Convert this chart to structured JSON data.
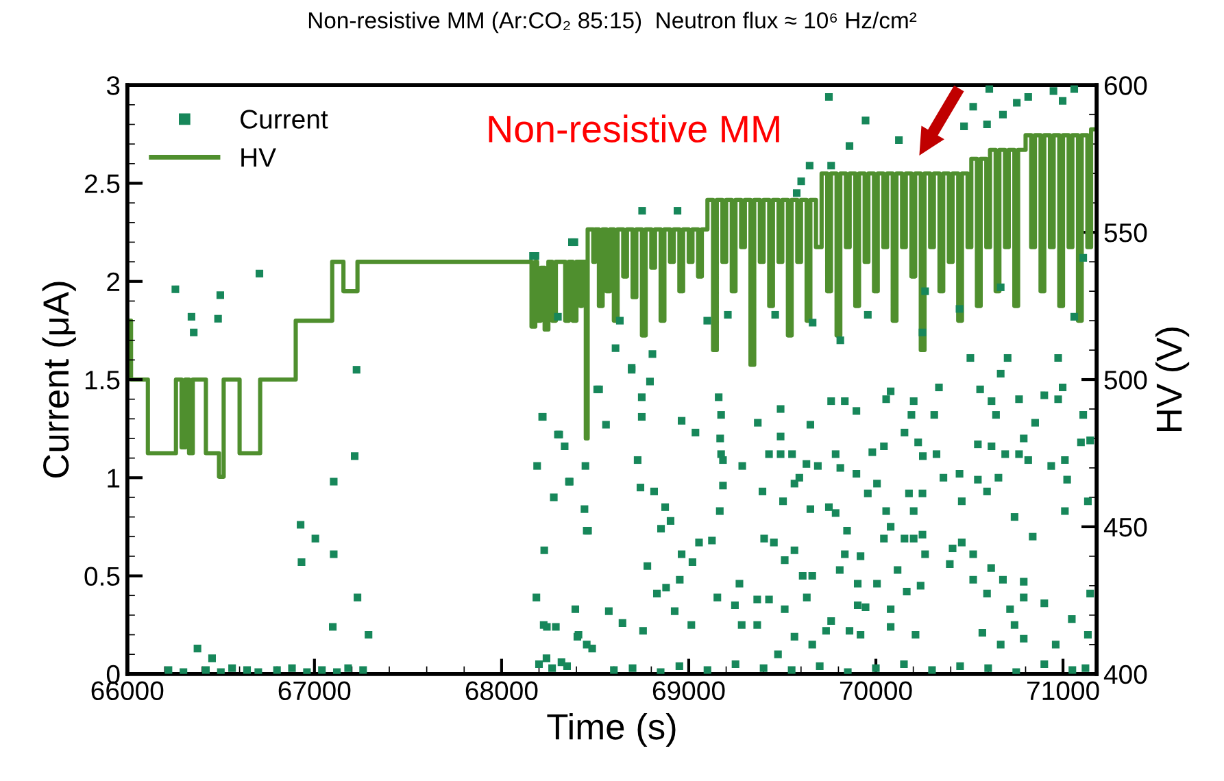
{
  "chart_data": {
    "type": "scatter",
    "title": "Non-resistive MM (Ar:CO₂ 85:15)  Neutron flux ≈ 10⁶ Hz/cm²",
    "xlabel": "Time (s)",
    "ylabel": "Current (μA)",
    "y2label": "HV (V)",
    "annotations": [
      "Non-resistive MM"
    ],
    "xlim": [
      66000,
      71180
    ],
    "xticks": [
      66000,
      67000,
      68000,
      69000,
      70000,
      71000
    ],
    "ylim": [
      0,
      3
    ],
    "yticks": [
      0,
      {
        "value": 0.5,
        "label": "0.5"
      },
      1,
      {
        "value": 1.5,
        "label": "1.5"
      },
      2,
      {
        "value": 2.5,
        "label": "2.5"
      },
      3
    ],
    "y2lim": [
      400,
      600
    ],
    "y2ticks": [
      400,
      450,
      500,
      550,
      600
    ],
    "legend": "top left",
    "grid": false,
    "marker": "square",
    "series": [
      {
        "name": "Current",
        "color": "#17875a",
        "x": [
          66257,
          66343,
          66355,
          66497,
          66485,
          66706,
          67225,
          67215,
          67103,
          66926,
          67005,
          66931,
          67103,
          67230,
          67098,
          67289,
          66375,
          66453,
          66220,
          66300,
          66420,
          66500,
          66560,
          66640,
          66700,
          66800,
          66880,
          66960,
          67040,
          67120,
          67180,
          67260,
          68376,
          68168,
          68301,
          68511,
          68220,
          68301,
          68337,
          68190,
          68448,
          68360,
          68279,
          68443,
          68455,
          68228,
          68186,
          68394,
          68225,
          68290,
          68405,
          68455,
          68200,
          68240,
          68270,
          68320,
          68350,
          68217,
          68308,
          68364,
          68462,
          68521,
          68558,
          68695,
          68793,
          68749,
          68749,
          68727,
          68742,
          68815,
          68874,
          68903,
          68852,
          68962,
          69036,
          69160,
          69173,
          69168,
          69173,
          69183,
          69286,
          69183,
          69166,
          69124,
          69055,
          68962,
          69020,
          68952,
          68879,
          68830,
          68779,
          68925,
          69014,
          68756,
          68646,
          68573,
          68242,
          68411,
          68484,
          69153,
          69247,
          69271,
          69283,
          69366,
          69366,
          69429,
          69513,
          69631,
          69565,
          69660,
          69477,
          69403,
          69455,
          69513,
          69565,
          69609,
          69660,
          69807,
          69903,
          70006,
          69918,
          69834,
          69903,
          69945,
          69859,
          69918,
          69761,
          69734,
          70079,
          70079,
          70116,
          70165,
          70239,
          70212,
          70202,
          70249,
          70263,
          70153,
          70043,
          70079,
          70410,
          70459,
          70520,
          70395,
          70616,
          70679,
          70520,
          70594,
          70790,
          70790,
          70900,
          70717,
          70741,
          70569,
          70667,
          70790,
          70961,
          71047,
          71145,
          71133,
          70814,
          70937,
          71010,
          71022,
          71133,
          71145,
          71096,
          71010,
          70741,
          70838,
          70545,
          70594,
          70655,
          70691,
          70765,
          70447,
          70361,
          70459,
          70545,
          70618,
          70642,
          70790,
          70851,
          70900,
          70974,
          70998,
          71108,
          70557,
          70618,
          70765,
          70667,
          70337,
          70312,
          70202,
          70190,
          70153,
          70226,
          70251,
          70324,
          70177,
          70249,
          70202,
          70055,
          70006,
          69957,
          69896,
          69810,
          69785,
          69690,
          69629,
          69591,
          69565,
          69749,
          69785,
          69846,
          69650,
          69429,
          69491,
          69552,
          69369,
          69491,
          69491,
          69394,
          69504,
          69650,
          69761,
          69834,
          69896,
          70055,
          70079,
          69981,
          70043,
          69749,
          69945,
          69859,
          70123,
          70520,
          70471,
          70594,
          70679,
          70753,
          70814,
          70949,
          71060,
          70998,
          70606,
          69646,
          69761,
          69601,
          69577,
          68751,
          68940,
          68389,
          68181,
          68609,
          68695,
          68806,
          68632,
          69209,
          69099,
          69462,
          69662,
          69810,
          69957,
          70249,
          70447,
          70704,
          71060,
          70974,
          70505,
          70263,
          70667,
          71108,
          68600,
          68700,
          68850,
          68950,
          69100,
          69250,
          69400,
          69550,
          69700,
          69850,
          70000,
          70150,
          70300,
          70450,
          70600,
          70750,
          70900,
          71050,
          71120
        ],
        "values": [
          1.96,
          1.82,
          1.74,
          1.93,
          1.81,
          2.04,
          1.55,
          1.11,
          0.98,
          0.76,
          0.69,
          0.57,
          0.61,
          0.39,
          0.24,
          0.2,
          0.13,
          0.08,
          0.02,
          0.01,
          0.02,
          0.01,
          0.03,
          0.02,
          0.01,
          0.02,
          0.03,
          0.01,
          0.02,
          0.01,
          0.03,
          0.02,
          2.2,
          2.13,
          1.82,
          1.45,
          1.31,
          1.22,
          1.16,
          1.06,
          1.06,
          0.98,
          0.9,
          0.84,
          0.73,
          0.63,
          0.39,
          0.33,
          0.25,
          0.24,
          0.19,
          0.15,
          0.05,
          0.08,
          0.03,
          0.06,
          0.04,
          1.31,
          1.22,
          0.98,
          0.73,
          1.45,
          1.27,
          1.56,
          1.49,
          1.41,
          1.31,
          1.09,
          0.95,
          0.93,
          0.85,
          0.78,
          0.74,
          1.29,
          1.23,
          1.41,
          1.32,
          1.2,
          1.12,
          1.09,
          1.06,
          0.96,
          0.83,
          0.68,
          0.67,
          0.61,
          0.57,
          0.48,
          0.44,
          0.41,
          0.55,
          0.32,
          0.25,
          0.22,
          0.26,
          0.32,
          0.24,
          0.2,
          0.13,
          0.39,
          0.35,
          0.46,
          0.25,
          0.25,
          0.38,
          0.38,
          0.33,
          0.39,
          0.19,
          0.15,
          0.1,
          0.69,
          0.67,
          0.58,
          0.63,
          0.5,
          0.5,
          0.53,
          0.46,
          0.46,
          0.6,
          0.61,
          0.35,
          0.34,
          0.22,
          0.2,
          0.27,
          0.22,
          0.33,
          0.24,
          0.53,
          0.42,
          0.45,
          0.2,
          0.69,
          0.71,
          0.61,
          0.69,
          0.69,
          0.75,
          0.64,
          0.67,
          0.61,
          0.56,
          0.54,
          0.48,
          0.48,
          0.41,
          0.47,
          0.39,
          0.36,
          0.33,
          0.25,
          0.21,
          0.15,
          0.18,
          0.15,
          0.28,
          0.41,
          0.2,
          1.09,
          1.06,
          1.09,
          0.99,
          0.88,
          1.19,
          1.18,
          0.83,
          0.8,
          0.7,
          0.99,
          0.93,
          1.0,
          1.12,
          1.12,
          1.02,
          1.0,
          0.88,
          1.17,
          1.16,
          1.32,
          1.2,
          1.28,
          1.42,
          1.4,
          1.46,
          1.32,
          1.45,
          1.39,
          1.4,
          1.53,
          1.46,
          1.32,
          1.39,
          1.32,
          1.23,
          1.18,
          1.11,
          1.12,
          0.92,
          0.92,
          0.83,
          0.83,
          0.97,
          0.92,
          1.02,
          1.05,
          1.12,
          1.06,
          1.07,
          1.0,
          0.97,
          0.85,
          0.82,
          0.73,
          0.84,
          1.12,
          1.12,
          1.12,
          1.28,
          1.21,
          1.35,
          0.93,
          0.88,
          1.27,
          1.39,
          1.39,
          1.34,
          1.4,
          1.44,
          1.13,
          1.16,
          2.94,
          2.82,
          2.69,
          2.72,
          2.89,
          2.79,
          2.8,
          2.85,
          2.91,
          2.94,
          2.97,
          2.98,
          2.92,
          2.98,
          2.59,
          2.59,
          2.51,
          2.45,
          2.36,
          2.36,
          2.2,
          2.13,
          1.66,
          1.55,
          1.63,
          1.8,
          1.83,
          1.8,
          1.83,
          1.79,
          1.7,
          1.83,
          1.74,
          1.86,
          1.61,
          1.82,
          1.61,
          1.61,
          1.95,
          1.97,
          2.12,
          0.02,
          0.03,
          0.01,
          0.04,
          0.02,
          0.05,
          0.03,
          0.02,
          0.04,
          0.01,
          0.03,
          0.05,
          0.02,
          0.04,
          0.03,
          0.01,
          0.05,
          0.02,
          0.03
        ]
      },
      {
        "name": "HV",
        "type": "step",
        "axis": "y2",
        "color": "#4f8f2e",
        "marker": "none",
        "x": [
          66000,
          66020,
          66110,
          66260,
          66290,
          66310,
          66330,
          66350,
          66420,
          66490,
          66515,
          66600,
          66710,
          66900,
          67095,
          67155,
          67230,
          68150,
          68160,
          68180,
          68190,
          68210,
          68230,
          68250,
          68270,
          68290,
          68340,
          68360,
          68380,
          68400,
          68420,
          68430,
          68450,
          68460,
          68490,
          68500,
          68520,
          68540,
          68560,
          68580,
          68600,
          68620,
          68650,
          68670,
          68700,
          68720,
          68750,
          68770,
          68800,
          68820,
          68850,
          68870,
          68900,
          68920,
          68950,
          68970,
          69000,
          69020,
          69050,
          69070,
          69100,
          69130,
          69150,
          69180,
          69200,
          69230,
          69250,
          69280,
          69300,
          69330,
          69350,
          69380,
          69400,
          69430,
          69450,
          69480,
          69500,
          69530,
          69550,
          69580,
          69600,
          69630,
          69650,
          69680,
          69710,
          69740,
          69760,
          69790,
          69810,
          69840,
          69860,
          69890,
          69910,
          69940,
          69960,
          69990,
          70010,
          70040,
          70060,
          70090,
          70110,
          70140,
          70160,
          70190,
          70210,
          70240,
          70260,
          70290,
          70310,
          70340,
          70360,
          70390,
          70410,
          70440,
          70460,
          70490,
          70510,
          70540,
          70560,
          70590,
          70610,
          70640,
          70660,
          70690,
          70710,
          70740,
          70760,
          70800,
          70830,
          70850,
          70880,
          70900,
          70930,
          70950,
          70980,
          71000,
          71030,
          71050,
          71080,
          71100,
          71130,
          71150,
          71180
        ],
        "values": [
          520,
          500,
          475,
          500,
          477,
          500,
          475,
          500,
          475,
          467,
          500,
          475,
          500,
          520,
          540,
          530,
          540,
          540,
          518,
          540,
          520,
          538,
          517,
          540,
          520,
          540,
          520,
          540,
          520,
          540,
          525,
          540,
          480,
          551,
          540,
          551,
          525,
          551,
          530,
          551,
          520,
          551,
          535,
          551,
          528,
          551,
          515,
          551,
          538,
          551,
          520,
          551,
          540,
          551,
          530,
          551,
          540,
          551,
          535,
          551,
          561,
          510,
          561,
          540,
          561,
          530,
          561,
          545,
          561,
          505,
          561,
          540,
          561,
          525,
          561,
          540,
          561,
          515,
          561,
          540,
          561,
          520,
          561,
          545,
          570,
          530,
          570,
          515,
          570,
          545,
          570,
          525,
          570,
          540,
          570,
          530,
          570,
          545,
          570,
          520,
          570,
          545,
          570,
          535,
          570,
          510,
          570,
          545,
          570,
          530,
          570,
          540,
          570,
          520,
          570,
          545,
          575,
          525,
          575,
          545,
          578,
          530,
          578,
          545,
          578,
          525,
          578,
          583,
          545,
          583,
          530,
          583,
          545,
          583,
          525,
          583,
          545,
          583,
          520,
          583,
          545,
          585,
          585
        ]
      }
    ]
  }
}
